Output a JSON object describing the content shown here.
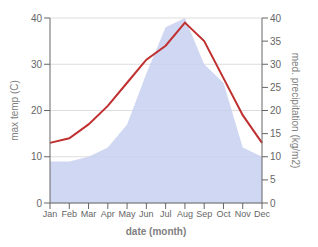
{
  "chart_data": {
    "type": "line",
    "categories": [
      "Jan",
      "Feb",
      "Mar",
      "Apr",
      "May",
      "Jun",
      "Jul",
      "Aug",
      "Sep",
      "Oct",
      "Nov",
      "Dec"
    ],
    "xlabel": "date (month)",
    "ylabel": "max temp (C)",
    "y2label": "med. precipitation (kg/m2)",
    "ylim": [
      0,
      40
    ],
    "yticks": [
      0,
      10,
      20,
      30,
      40
    ],
    "y2lim": [
      0,
      40
    ],
    "y2ticks": [
      0,
      5,
      10,
      15,
      20,
      25,
      30,
      35,
      40
    ],
    "grid": true,
    "series": [
      {
        "type": "area",
        "color": "#c8d0f0",
        "axis": "y2",
        "values": [
          9,
          9,
          10,
          12,
          17,
          28,
          38,
          40,
          30,
          26,
          12,
          10
        ]
      },
      {
        "type": "line",
        "color": "#c03030",
        "values": [
          13,
          14,
          17,
          21,
          26,
          31,
          34,
          39,
          35,
          27,
          19,
          13
        ]
      }
    ]
  }
}
